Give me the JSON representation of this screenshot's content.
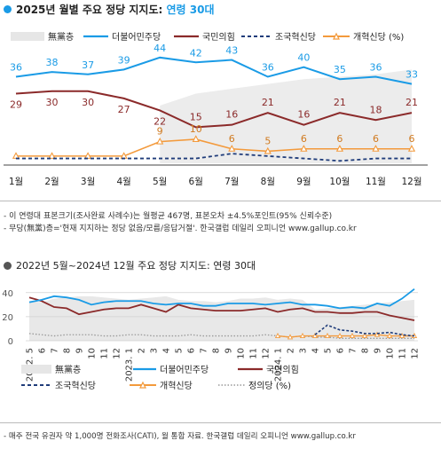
{
  "section1": {
    "title_prefix": "2025년 월별 주요 정당 지지도:",
    "title_highlight": "연령 30대",
    "legend": [
      "無黨층",
      "더불어민주당",
      "국민의힘",
      "조국혁신당",
      "개혁신당 (%)"
    ],
    "notes": [
      "- 이 연령대 표본크기(조사완료 사례수)는 월평균 467명, 표본오차 ±4.5%포인트(95% 신뢰수준)",
      "- 무당(無黨)층='현재 지지하는 정당 없음/모름/응답거절'. 한국갤럽 데일리 오피니언 www.gallup.co.kr"
    ]
  },
  "section2": {
    "title": "2022년 5월~2024년 12월 주요 정당 지지도: 연령 30대",
    "legend": [
      "無黨층",
      "더불어민주당",
      "국민의힘",
      "조국혁신당",
      "개혁신당",
      "정의당 (%)"
    ],
    "note": "- 매주 전국 유권자 약 1,000명 전화조사(CATI), 월 통합 자료. 한국갤럽 데일리 오피니언 www.gallup.co.kr"
  },
  "colors": {
    "democratic": "#1a9be6",
    "ppp": "#8b2a2a",
    "rebuilding": "#1f3c7a",
    "reform": "#f39a3c",
    "justice": "#999999",
    "independent": "#e8e8e8"
  },
  "chart_data": [
    {
      "type": "line",
      "categories": [
        "1월",
        "2월",
        "3월",
        "4월",
        "5월",
        "6월",
        "7월",
        "8월",
        "9월",
        "10월",
        "11월",
        "12월"
      ],
      "ylim": [
        0,
        48
      ],
      "series": [
        {
          "name": "無黨층",
          "type": "area",
          "values": [
            null,
            null,
            null,
            null,
            null,
            null,
            null,
            null,
            null,
            null,
            null,
            null
          ],
          "values_estimated": [
            null,
            null,
            null,
            null,
            24,
            29,
            31,
            33,
            35,
            36,
            37,
            39
          ]
        },
        {
          "name": "더불어민주당",
          "values": [
            36,
            38,
            37,
            39,
            44,
            42,
            43,
            36,
            40,
            35,
            36,
            33
          ]
        },
        {
          "name": "국민의힘",
          "values": [
            29,
            30,
            30,
            27,
            22,
            15,
            16,
            21,
            16,
            21,
            18,
            21
          ]
        },
        {
          "name": "조국혁신당",
          "values_estimated": [
            2,
            2,
            2,
            2,
            2,
            2,
            4,
            3,
            2,
            1,
            2,
            2
          ]
        },
        {
          "name": "개혁신당",
          "values": [
            3,
            3,
            3,
            3,
            9,
            10,
            6,
            5,
            6,
            6,
            6,
            6
          ],
          "labels": [
            null,
            null,
            null,
            null,
            "9",
            "10",
            "6",
            "5",
            "6",
            "6",
            "6",
            "6"
          ]
        }
      ]
    },
    {
      "type": "line",
      "x_year_labels": [
        "2022.",
        "2023.",
        "2024."
      ],
      "x_month_labels": [
        "5",
        "6",
        "7",
        "8",
        "9",
        "10",
        "11",
        "12",
        "1",
        "2",
        "3",
        "4",
        "5",
        "6",
        "7",
        "8",
        "9",
        "10",
        "11",
        "12",
        "1",
        "2",
        "3",
        "4",
        "5",
        "6",
        "7",
        "8",
        "9",
        "10",
        "11",
        "12"
      ],
      "yticks": [
        0,
        20,
        40
      ],
      "ylim": [
        0,
        45
      ],
      "series": [
        {
          "name": "無黨층",
          "type": "area",
          "values": [
            33,
            32,
            35,
            36,
            37,
            37,
            36,
            35,
            34,
            35,
            36,
            37,
            34,
            33,
            33,
            32,
            33,
            35,
            35,
            36,
            34,
            35,
            34,
            26,
            27,
            28,
            29,
            30,
            31,
            32,
            33,
            34
          ]
        },
        {
          "name": "더불어민주당",
          "values": [
            32,
            34,
            37,
            36,
            34,
            30,
            32,
            33,
            33,
            33,
            31,
            30,
            31,
            31,
            29,
            29,
            31,
            31,
            31,
            30,
            31,
            32,
            30,
            30,
            29,
            27,
            28,
            27,
            31,
            29,
            35,
            43
          ]
        },
        {
          "name": "국민의힘",
          "values": [
            36,
            33,
            28,
            27,
            22,
            24,
            26,
            27,
            27,
            30,
            27,
            24,
            30,
            27,
            26,
            25,
            25,
            25,
            26,
            27,
            24,
            26,
            27,
            24,
            24,
            23,
            23,
            24,
            24,
            21,
            19,
            17
          ]
        },
        {
          "name": "조국혁신당",
          "values": [
            null,
            null,
            null,
            null,
            null,
            null,
            null,
            null,
            null,
            null,
            null,
            null,
            null,
            null,
            null,
            null,
            null,
            null,
            null,
            null,
            null,
            null,
            null,
            5,
            13,
            9,
            8,
            6,
            6,
            7,
            5,
            4
          ]
        },
        {
          "name": "개혁신당",
          "values": [
            null,
            null,
            null,
            null,
            null,
            null,
            null,
            null,
            null,
            null,
            null,
            null,
            null,
            null,
            null,
            null,
            null,
            null,
            null,
            null,
            4,
            3,
            4,
            4,
            4,
            4,
            4,
            4,
            5,
            4,
            4,
            4
          ]
        },
        {
          "name": "정의당",
          "values": [
            6,
            5,
            4,
            5,
            5,
            5,
            4,
            4,
            5,
            5,
            4,
            4,
            4,
            5,
            4,
            4,
            4,
            4,
            4,
            5,
            4,
            3,
            4,
            3,
            3,
            2,
            2,
            2,
            2,
            2,
            2,
            2
          ]
        }
      ]
    }
  ]
}
